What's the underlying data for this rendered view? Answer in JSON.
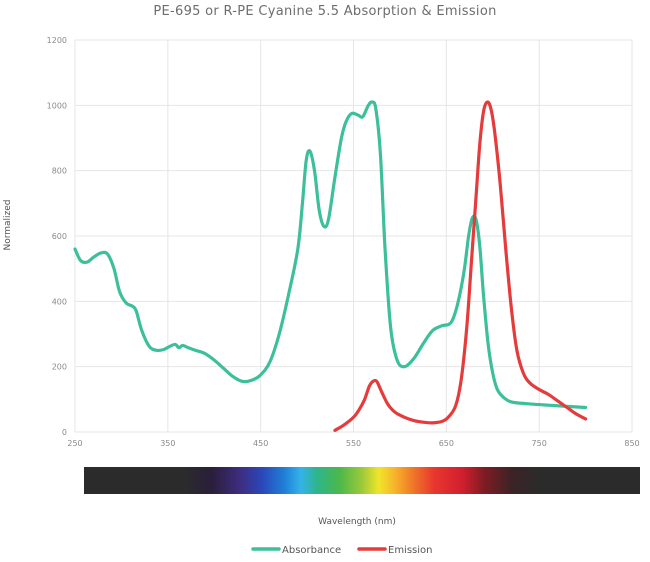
{
  "chart_data": {
    "type": "line",
    "title": "PE-695 or R-PE Cyanine 5.5 Absorption & Emission",
    "xlabel": "Wavelength (nm)",
    "ylabel": "Normalized",
    "xlim": [
      250,
      850
    ],
    "ylim": [
      0,
      1200
    ],
    "x_ticks": [
      "250",
      "350",
      "450",
      "550",
      "650",
      "750",
      "850"
    ],
    "y_ticks": [
      "0",
      "200",
      "400",
      "600",
      "800",
      "1000",
      "1200"
    ],
    "grid": "vertical and horizontal gridlines",
    "legend": "bottom-center",
    "spectrum_bar": "visible color spectrum strip below x-axis",
    "series": [
      {
        "name": "Absorbance",
        "color": "#3dbf9b",
        "points": [
          [
            250,
            560
          ],
          [
            256,
            525
          ],
          [
            263,
            520
          ],
          [
            270,
            535
          ],
          [
            278,
            548
          ],
          [
            285,
            545
          ],
          [
            292,
            500
          ],
          [
            298,
            430
          ],
          [
            305,
            395
          ],
          [
            312,
            385
          ],
          [
            316,
            370
          ],
          [
            322,
            310
          ],
          [
            330,
            262
          ],
          [
            338,
            250
          ],
          [
            346,
            253
          ],
          [
            352,
            262
          ],
          [
            358,
            268
          ],
          [
            362,
            258
          ],
          [
            366,
            265
          ],
          [
            372,
            258
          ],
          [
            380,
            250
          ],
          [
            390,
            240
          ],
          [
            400,
            220
          ],
          [
            410,
            195
          ],
          [
            420,
            170
          ],
          [
            430,
            155
          ],
          [
            440,
            158
          ],
          [
            450,
            175
          ],
          [
            460,
            215
          ],
          [
            470,
            300
          ],
          [
            480,
            420
          ],
          [
            490,
            560
          ],
          [
            495,
            700
          ],
          [
            499,
            830
          ],
          [
            503,
            860
          ],
          [
            508,
            800
          ],
          [
            513,
            680
          ],
          [
            518,
            630
          ],
          [
            523,
            650
          ],
          [
            530,
            780
          ],
          [
            537,
            900
          ],
          [
            542,
            950
          ],
          [
            548,
            975
          ],
          [
            555,
            970
          ],
          [
            560,
            965
          ],
          [
            566,
            1000
          ],
          [
            570,
            1010
          ],
          [
            574,
            990
          ],
          [
            579,
            850
          ],
          [
            584,
            560
          ],
          [
            590,
            320
          ],
          [
            597,
            220
          ],
          [
            605,
            200
          ],
          [
            615,
            225
          ],
          [
            625,
            270
          ],
          [
            635,
            310
          ],
          [
            645,
            325
          ],
          [
            655,
            335
          ],
          [
            662,
            390
          ],
          [
            669,
            490
          ],
          [
            674,
            600
          ],
          [
            678,
            655
          ],
          [
            682,
            650
          ],
          [
            686,
            570
          ],
          [
            690,
            420
          ],
          [
            695,
            270
          ],
          [
            700,
            180
          ],
          [
            705,
            130
          ],
          [
            712,
            105
          ],
          [
            720,
            92
          ],
          [
            735,
            87
          ],
          [
            760,
            82
          ],
          [
            800,
            75
          ]
        ]
      },
      {
        "name": "Emission",
        "color": "#e53b3b",
        "points": [
          [
            530,
            5
          ],
          [
            540,
            22
          ],
          [
            550,
            45
          ],
          [
            556,
            68
          ],
          [
            562,
            100
          ],
          [
            567,
            140
          ],
          [
            571,
            155
          ],
          [
            575,
            155
          ],
          [
            580,
            125
          ],
          [
            587,
            85
          ],
          [
            595,
            60
          ],
          [
            605,
            45
          ],
          [
            615,
            35
          ],
          [
            625,
            30
          ],
          [
            635,
            28
          ],
          [
            645,
            32
          ],
          [
            652,
            45
          ],
          [
            660,
            80
          ],
          [
            666,
            160
          ],
          [
            672,
            320
          ],
          [
            677,
            520
          ],
          [
            682,
            720
          ],
          [
            686,
            880
          ],
          [
            690,
            980
          ],
          [
            694,
            1010
          ],
          [
            698,
            990
          ],
          [
            702,
            920
          ],
          [
            708,
            760
          ],
          [
            714,
            560
          ],
          [
            720,
            380
          ],
          [
            726,
            250
          ],
          [
            733,
            180
          ],
          [
            740,
            150
          ],
          [
            750,
            130
          ],
          [
            760,
            115
          ],
          [
            770,
            95
          ],
          [
            780,
            75
          ],
          [
            790,
            55
          ],
          [
            800,
            40
          ]
        ]
      }
    ]
  }
}
